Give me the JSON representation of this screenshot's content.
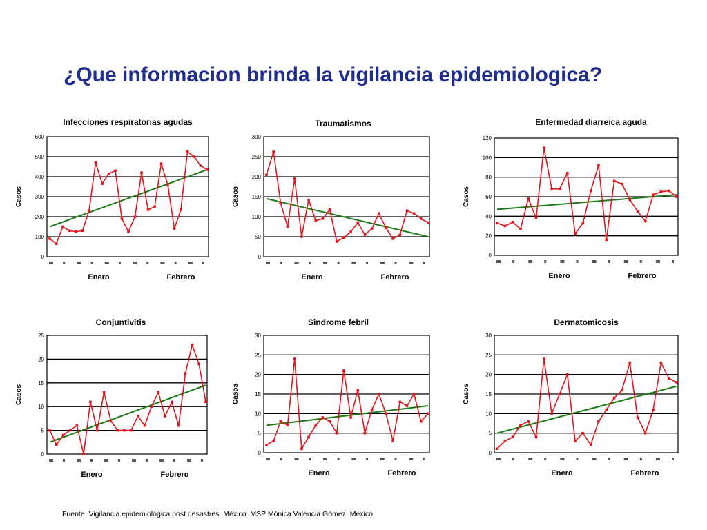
{
  "title": "¿Que informacion brinda la vigilancia epidemiologica?",
  "footer": "Fuente: Vigilancia epidemiológica post desastres. México. MSP Mónica Valencia Gómez. México",
  "colors": {
    "series": "#e8121b",
    "trend": "#1a7d1a",
    "title": "#1f2d8f"
  },
  "chart_data": [
    {
      "type": "line",
      "title": "Infecciones respiratorias agudas",
      "ylabel": "Casos",
      "ylim": [
        0,
        600
      ],
      "yticks": [
        0,
        100,
        200,
        300,
        400,
        500,
        600
      ],
      "xlabels": [
        "Enero",
        "Febrero"
      ],
      "grid": true,
      "values": [
        90,
        65,
        150,
        130,
        125,
        130,
        230,
        470,
        365,
        415,
        430,
        190,
        125,
        200,
        420,
        235,
        250,
        465,
        360,
        140,
        235,
        525,
        500,
        455,
        435
      ],
      "trend": [
        150,
        435
      ]
    },
    {
      "type": "line",
      "title": "Traumatismos",
      "ylabel": "Casos",
      "ylim": [
        0,
        300
      ],
      "yticks": [
        0,
        50,
        100,
        150,
        200,
        250,
        300
      ],
      "xlabels": [
        "Enero",
        "Febrero"
      ],
      "grid": true,
      "values": [
        205,
        262,
        135,
        75,
        195,
        50,
        142,
        90,
        95,
        118,
        38,
        48,
        62,
        85,
        55,
        70,
        108,
        72,
        45,
        55,
        115,
        108,
        95,
        85
      ],
      "trend": [
        145,
        50
      ]
    },
    {
      "type": "line",
      "title": "Enfermedad diarreica aguda",
      "ylabel": "Casos",
      "ylim": [
        0,
        120
      ],
      "yticks": [
        0,
        20,
        40,
        60,
        80,
        100,
        120
      ],
      "xlabels": [
        "Enero",
        "Febrero"
      ],
      "grid": true,
      "values": [
        33,
        30,
        34,
        27,
        58,
        38,
        110,
        68,
        68,
        84,
        22,
        33,
        66,
        92,
        16,
        76,
        73,
        57,
        45,
        35,
        62,
        65,
        66,
        60
      ],
      "trend": [
        47,
        62
      ]
    },
    {
      "type": "line",
      "title": "Conjuntivitis",
      "ylabel": "Casos",
      "ylim": [
        0,
        25
      ],
      "yticks": [
        0,
        5,
        10,
        15,
        20,
        25
      ],
      "xlabels": [
        "Enero",
        "Febrero"
      ],
      "grid": true,
      "values": [
        5,
        2,
        4,
        5,
        6,
        0,
        11,
        5,
        13,
        7,
        5,
        5,
        5,
        8,
        6,
        10,
        13,
        8,
        11,
        6,
        17,
        23,
        19,
        11
      ],
      "trend": [
        2.5,
        14.5
      ]
    },
    {
      "type": "line",
      "title": "Sindrome febril",
      "ylabel": "Casos",
      "ylim": [
        0,
        30
      ],
      "yticks": [
        0,
        5,
        10,
        15,
        20,
        25,
        30
      ],
      "xlabels": [
        "Enero",
        "Febrero"
      ],
      "grid": true,
      "values": [
        2,
        3,
        8,
        7,
        24,
        1,
        4,
        7,
        9,
        8,
        5,
        21,
        9,
        16,
        5,
        11,
        15,
        10,
        3,
        13,
        12,
        15,
        8,
        10
      ],
      "trend": [
        7,
        12
      ]
    },
    {
      "type": "line",
      "title": "Dermatomicosis",
      "ylabel": "Casos",
      "ylim": [
        0,
        30
      ],
      "yticks": [
        0,
        5,
        10,
        15,
        20,
        25,
        30
      ],
      "xlabels": [
        "Enero",
        "Febrero"
      ],
      "grid": true,
      "values": [
        1,
        3,
        4,
        7,
        8,
        4,
        24,
        10,
        15,
        20,
        3,
        5,
        2,
        8,
        11,
        14,
        16,
        23,
        9,
        5,
        11,
        23,
        19,
        18
      ],
      "trend": [
        5,
        17
      ]
    }
  ]
}
